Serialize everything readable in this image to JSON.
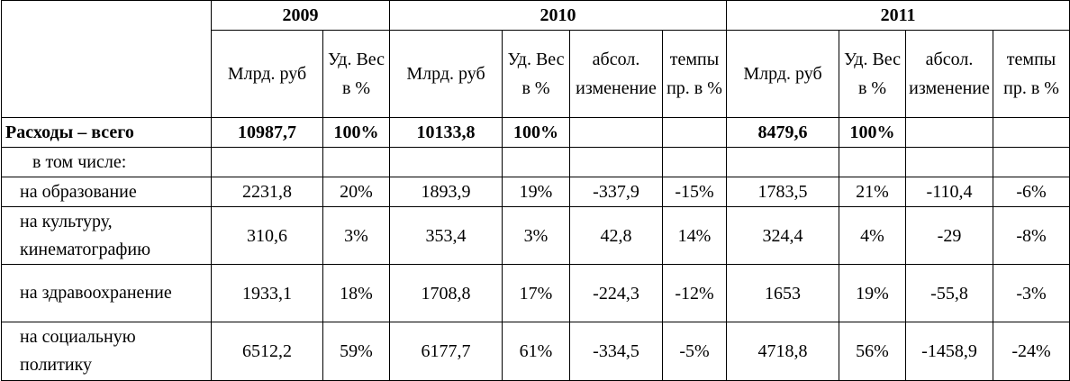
{
  "table": {
    "years": [
      "2009",
      "2010",
      "2011"
    ],
    "subheaders": [
      "Млрд. руб",
      "Уд. Вес в %",
      "Млрд. руб",
      "Уд. Вес в %",
      "абсол. изменение",
      "темпы пр. в %",
      "Млрд. руб",
      "Уд. Вес в %",
      "абсол. изменение",
      "темпы пр. в %"
    ],
    "rows": [
      [
        "Расходы – всего",
        "10987,7",
        "100%",
        "10133,8",
        "100%",
        null,
        null,
        "8479,6",
        "100%",
        null,
        null
      ],
      [
        "в том числе:",
        null,
        null,
        null,
        null,
        null,
        null,
        null,
        null,
        null,
        null
      ],
      [
        "на образование",
        "2231,8",
        "20%",
        "1893,9",
        "19%",
        "-337,9",
        "-15%",
        "1783,5",
        "21%",
        "-110,4",
        "-6%"
      ],
      [
        "на культуру, кинематографию",
        "310,6",
        "3%",
        "353,4",
        "3%",
        "42,8",
        "14%",
        "324,4",
        "4%",
        "-29",
        "-8%"
      ],
      [
        "на здравоохранение",
        "1933,1",
        "18%",
        "1708,8",
        "17%",
        "-224,3",
        "-12%",
        "1653",
        "19%",
        "-55,8",
        "-3%"
      ],
      [
        "на социальную политику",
        "6512,2",
        "59%",
        "6177,7",
        "61%",
        "-334,5",
        "-5%",
        "4718,8",
        "56%",
        "-1458,9",
        "-24%"
      ]
    ]
  }
}
